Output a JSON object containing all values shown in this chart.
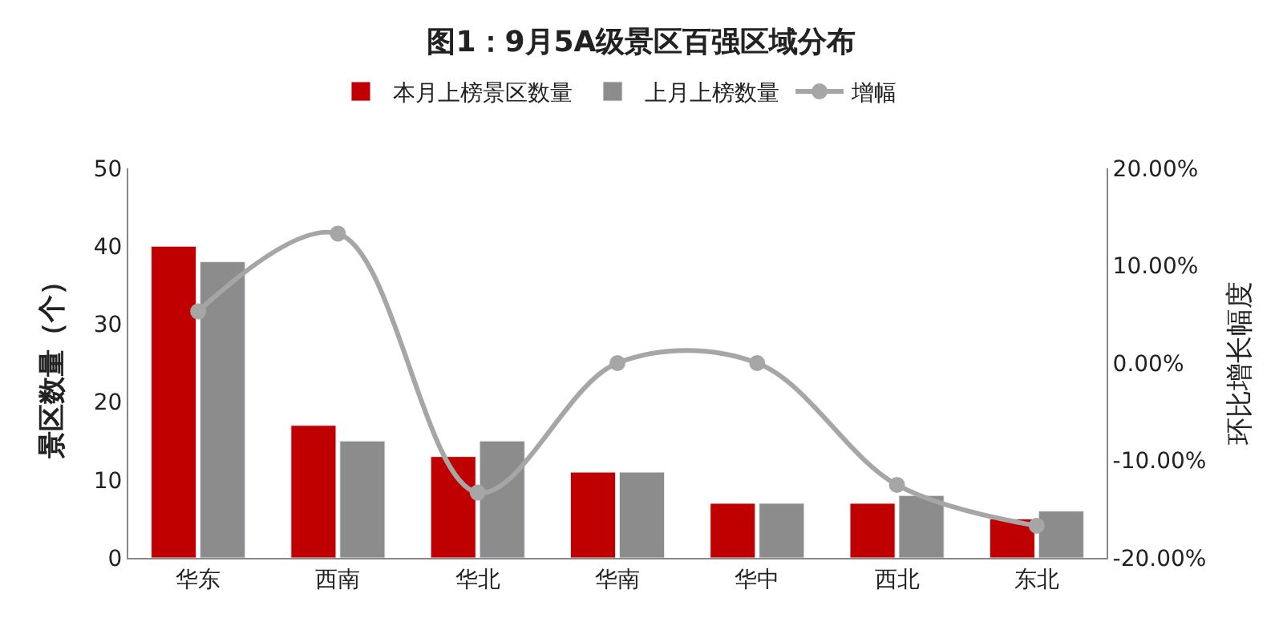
{
  "chart_data": {
    "type": "bar",
    "title": "图1：9月5A级景区百强区域分布",
    "ylabel": "景区数量（个）",
    "y2label": "环比增长幅度",
    "categories": [
      "华东",
      "西南",
      "华北",
      "华南",
      "华中",
      "西北",
      "东北"
    ],
    "series": [
      {
        "name": "本月上榜景区数量",
        "color": "#c00000",
        "values": [
          40,
          17,
          13,
          11,
          7,
          7,
          5
        ]
      },
      {
        "name": "上月上榜数量",
        "color": "#8c8c8c",
        "values": [
          38,
          15,
          15,
          11,
          7,
          8,
          6
        ]
      },
      {
        "name": "增幅",
        "type": "line",
        "axis": "y2",
        "color": "#a6a6a6",
        "marker": "circle",
        "values": [
          5.3,
          13.3,
          -13.3,
          0,
          0,
          -12.5,
          -16.7
        ]
      }
    ],
    "ylim": [
      0,
      50
    ],
    "yticks": [
      0,
      10,
      20,
      30,
      40,
      50
    ],
    "y2lim": [
      -20,
      20
    ],
    "y2ticks": [
      {
        "value": -20,
        "label": "-20.00%"
      },
      {
        "value": -10,
        "label": "-10.00%"
      },
      {
        "value": 0,
        "label": "0.00%"
      },
      {
        "value": 10,
        "label": "10.00%"
      },
      {
        "value": 20,
        "label": "20.00%"
      }
    ],
    "legend": "top"
  }
}
